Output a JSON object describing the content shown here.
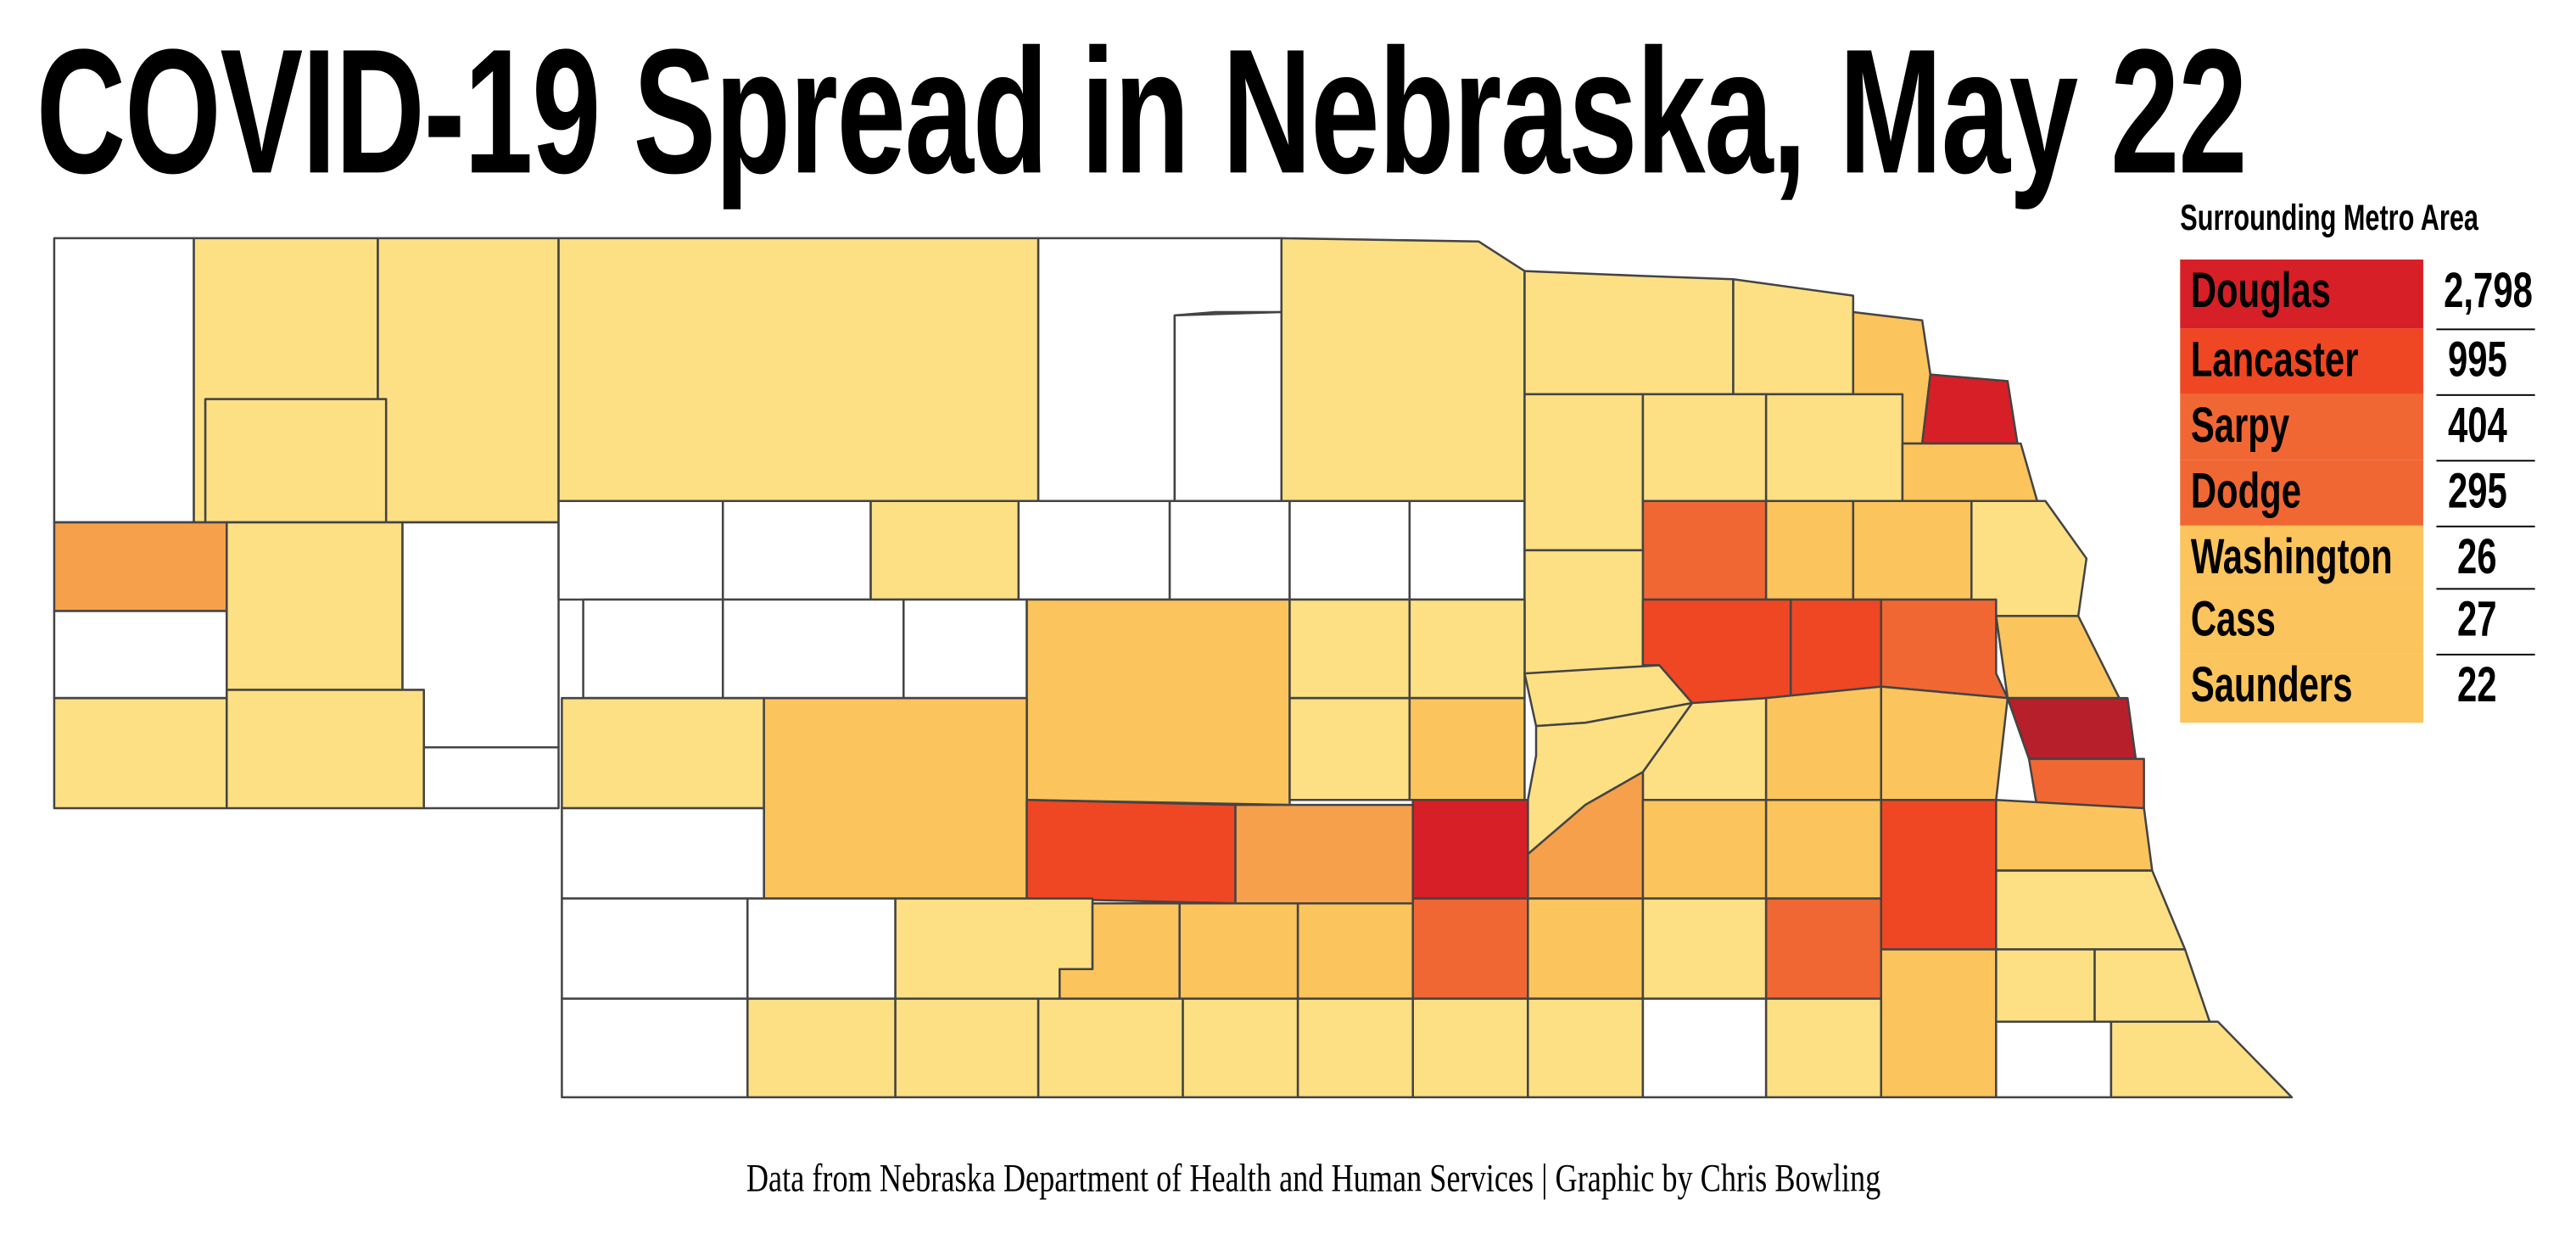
{
  "title": "COVID-19 Spread in Nebraska, May 22",
  "palette": {
    "none": "#ffffff",
    "low": "#fde084",
    "medium": "#fcc45c",
    "elevated": "#f6a04c",
    "high": "#f16733",
    "very_high": "#ef4723",
    "severe": "#d71f27",
    "highest": "#b71f2b",
    "border": "#444444"
  },
  "legend": {
    "title": "Surrounding Metro Area",
    "rows": [
      {
        "county": "Douglas",
        "cases": "2,798",
        "color": "#d71f27"
      },
      {
        "county": "Lancaster",
        "cases": "995",
        "color": "#ef4723"
      },
      {
        "county": "Sarpy",
        "cases": "404",
        "color": "#f16733"
      },
      {
        "county": "Dodge",
        "cases": "295",
        "color": "#f16733"
      },
      {
        "county": "Washington",
        "cases": "26",
        "color": "#fcc45c"
      },
      {
        "county": "Cass",
        "cases": "27",
        "color": "#fcc45c"
      },
      {
        "county": "Saunders",
        "cases": "22",
        "color": "#fcc45c"
      }
    ]
  },
  "credit": "Data from Nebraska Department of Health and Human Services | Graphic by Chris Bowling"
}
